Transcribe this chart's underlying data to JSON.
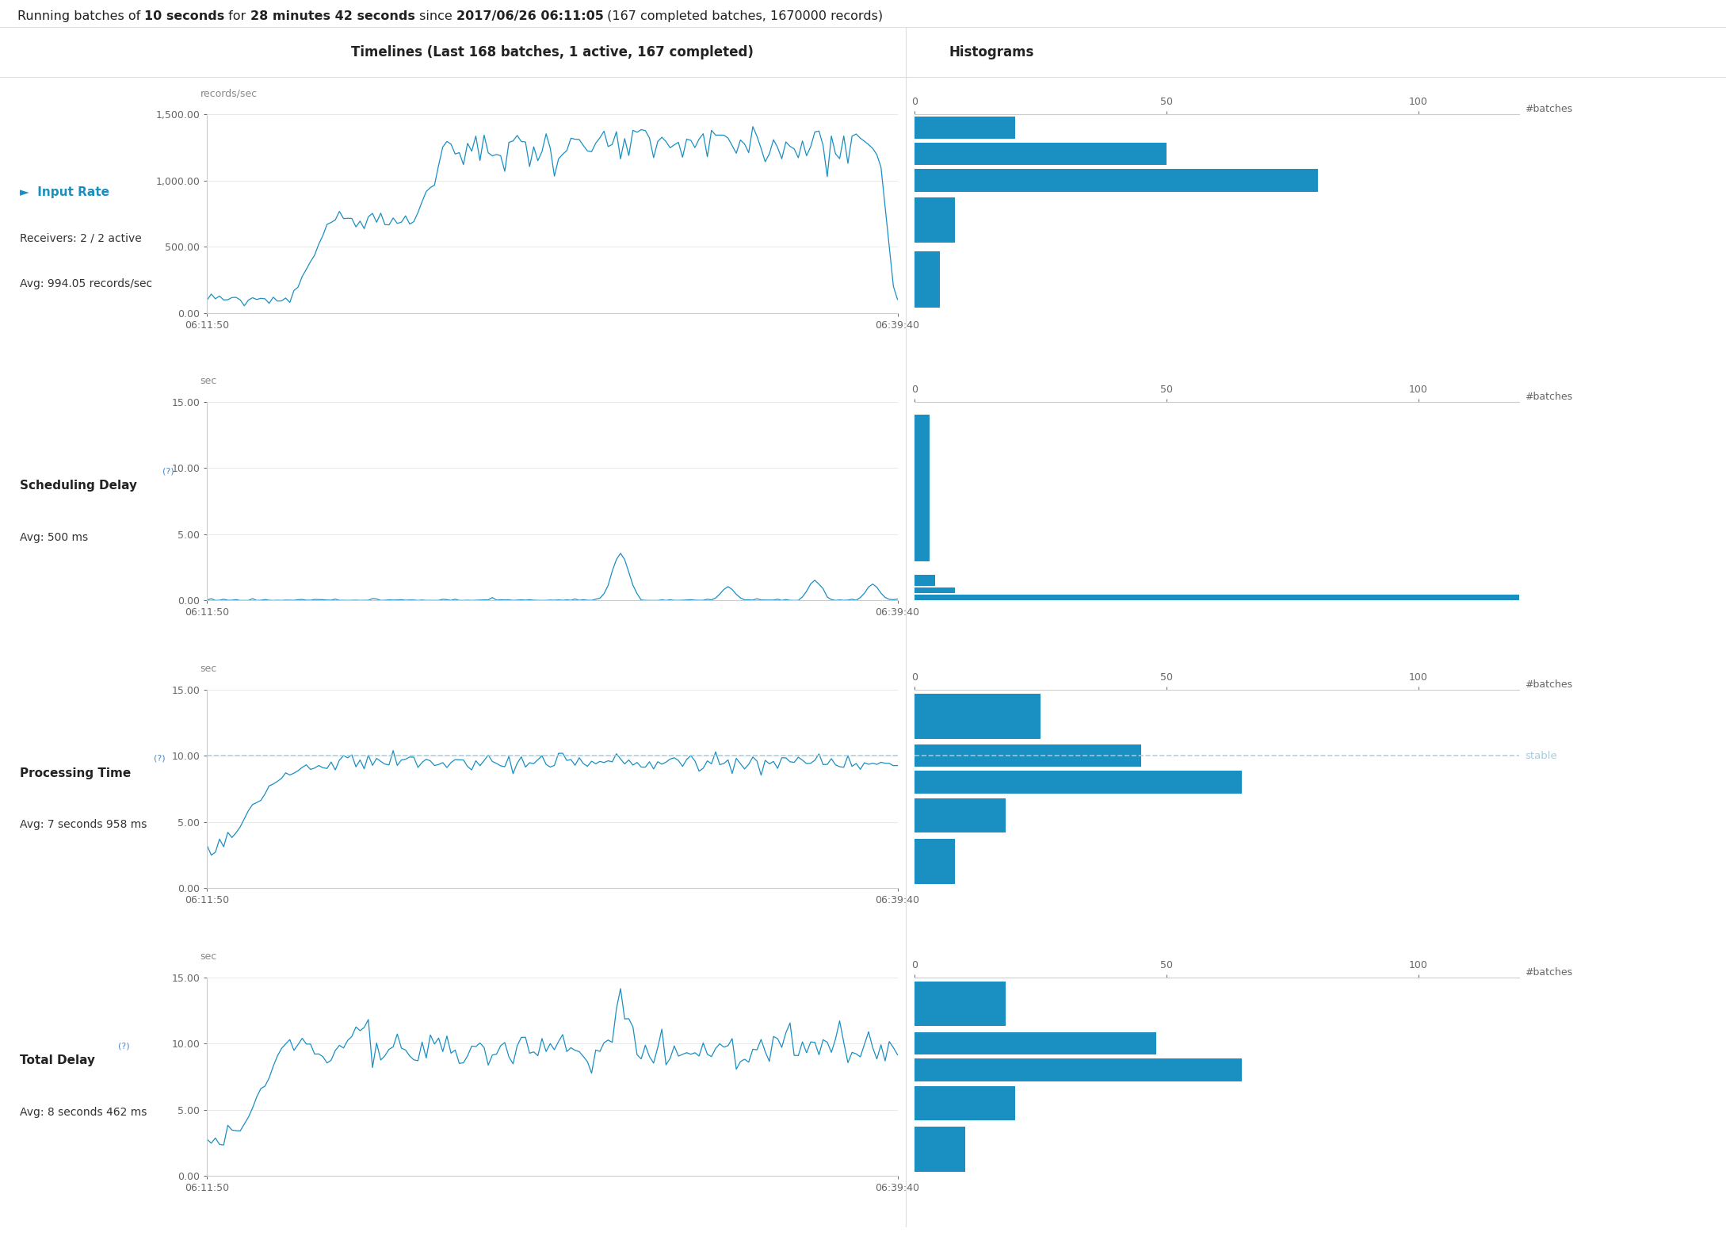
{
  "title_parts": [
    [
      "Running batches of ",
      false
    ],
    [
      "10 seconds",
      true
    ],
    [
      " for ",
      false
    ],
    [
      "28 minutes 42 seconds",
      true
    ],
    [
      " since ",
      false
    ],
    [
      "2017/06/26 06:11:05",
      true
    ],
    [
      " (167 completed batches, 1670000 records)",
      false
    ]
  ],
  "timelines_header": "Timelines (Last 168 batches, 1 active, 167 completed)",
  "histograms_header": "Histograms",
  "hist_xlabel": "#batches",
  "time_xstart": "06:11:50",
  "time_xend": "06:39:40",
  "line_color": "#1a8fc1",
  "dashed_color": "#aaccdd",
  "stable_color": "#aaccdd",
  "hist_color": "#1a8fc1",
  "bg_color": "#ffffff",
  "grid_color": "#cccccc",
  "border_color": "#dddddd",
  "rows": [
    {
      "label": "►  Input Rate",
      "label_color": "#1a8fc1",
      "sub1": "Receivers: 2 / 2 active",
      "sub2": "Avg: 994.05 records/sec",
      "ylabel": "records/sec",
      "ylim": [
        0,
        1500
      ],
      "yticks": [
        0,
        500,
        1000,
        1500
      ],
      "ytick_labels": [
        "0.00",
        "500.00",
        "1,000.00",
        "1,500.00"
      ],
      "dashed": null,
      "stable": null,
      "hist_bins": [
        0,
        500,
        900,
        1100,
        1300,
        1500
      ],
      "hist_counts": [
        5,
        8,
        80,
        50,
        20
      ]
    },
    {
      "label": "Scheduling Delay",
      "label_superscript": "(?)",
      "label_color": "#222222",
      "sub1": "",
      "sub2": "Avg: 500 ms",
      "ylabel": "sec",
      "ylim": [
        0,
        15
      ],
      "yticks": [
        0,
        5,
        10,
        15
      ],
      "ytick_labels": [
        "0.00",
        "5.00",
        "10.00",
        "15.00"
      ],
      "dashed": null,
      "stable": null,
      "hist_bins": [
        0,
        0.5,
        1.0,
        2.0,
        15.0
      ],
      "hist_counts": [
        150,
        8,
        4,
        3
      ]
    },
    {
      "label": "Processing Time",
      "label_superscript": "(?)",
      "label_color": "#222222",
      "sub1": "",
      "sub2": "Avg: 7 seconds 958 ms",
      "ylabel": "sec",
      "ylim": [
        0,
        15
      ],
      "yticks": [
        0,
        5,
        10,
        15
      ],
      "ytick_labels": [
        "0.00",
        "5.00",
        "10.00",
        "15.00"
      ],
      "dashed": 10.0,
      "stable": "stable",
      "hist_bins": [
        0,
        4,
        7,
        9,
        11,
        15
      ],
      "hist_counts": [
        8,
        18,
        65,
        45,
        25
      ]
    },
    {
      "label": "Total Delay",
      "label_superscript": "(?)",
      "label_color": "#222222",
      "sub1": "",
      "sub2": "Avg: 8 seconds 462 ms",
      "ylabel": "sec",
      "ylim": [
        0,
        15
      ],
      "yticks": [
        0,
        5,
        10,
        15
      ],
      "ytick_labels": [
        "0.00",
        "5.00",
        "10.00",
        "15.00"
      ],
      "dashed": null,
      "stable": null,
      "hist_bins": [
        0,
        4,
        7,
        9,
        11,
        15
      ],
      "hist_counts": [
        10,
        20,
        65,
        48,
        18
      ]
    }
  ]
}
